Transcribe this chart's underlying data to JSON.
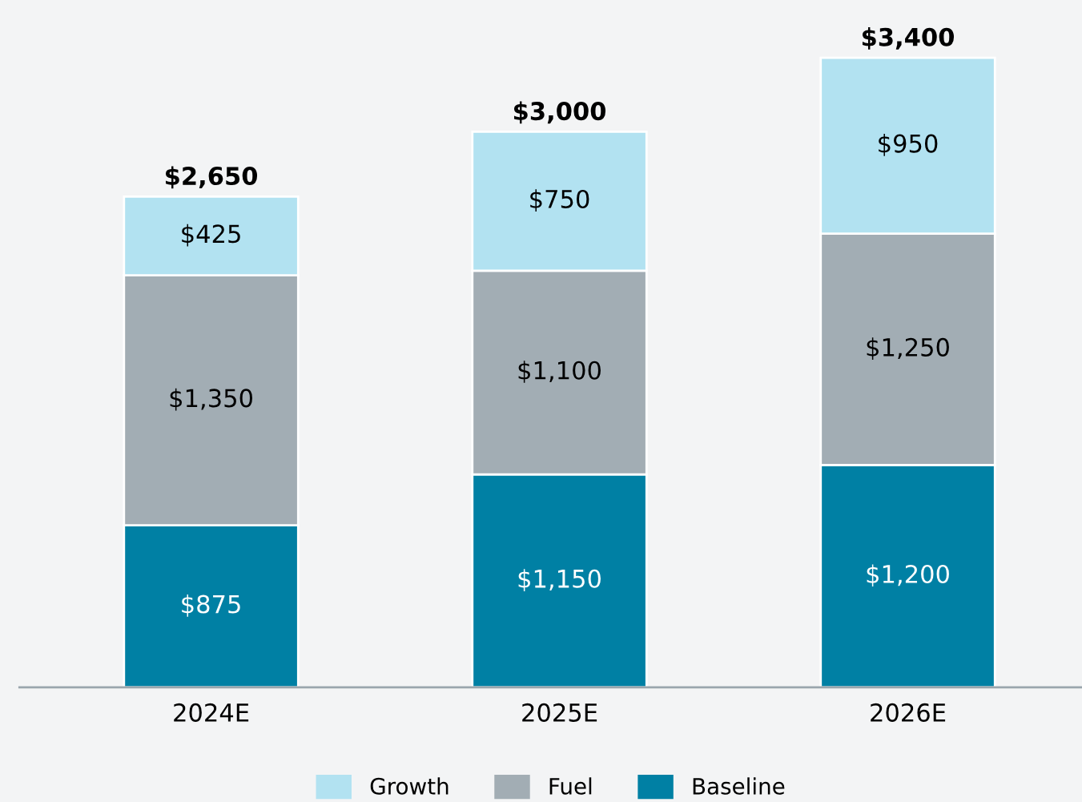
{
  "chart_data": {
    "type": "bar",
    "stacked": true,
    "categories": [
      "2024E",
      "2025E",
      "2026E"
    ],
    "series": [
      {
        "name": "Baseline",
        "color": "#0080a4",
        "values": [
          875,
          1150,
          1200
        ],
        "value_labels": [
          "$875",
          "$1,150",
          "$1,200"
        ]
      },
      {
        "name": "Fuel",
        "color": "#a2adb4",
        "values": [
          1350,
          1100,
          1250
        ],
        "value_labels": [
          "$1,350",
          "$1,100",
          "$1,250"
        ]
      },
      {
        "name": "Growth",
        "color": "#b2e2f1",
        "values": [
          425,
          750,
          950
        ],
        "value_labels": [
          "$425",
          "$750",
          "$950"
        ]
      }
    ],
    "totals": [
      "$2,650",
      "$3,000",
      "$3,400"
    ],
    "legend": "bottom",
    "grid": false
  }
}
